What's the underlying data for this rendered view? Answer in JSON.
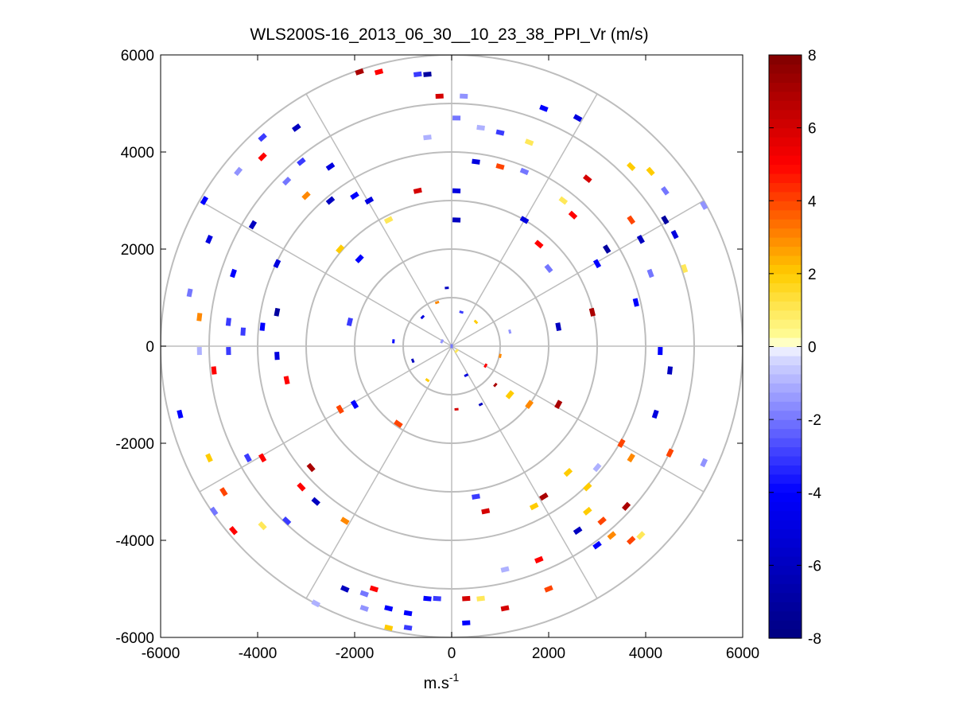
{
  "chart_data": {
    "type": "scatter",
    "subtype": "polar-ppi",
    "title": "WLS200S-16_2013_06_30__10_23_38_PPI_Vr (m/s)",
    "xlabel": "m.s",
    "xlabel_superscript": "-1",
    "ylabel": "",
    "xlim": [
      -6000,
      6000
    ],
    "ylim": [
      -6000,
      6000
    ],
    "xticks": [
      -6000,
      -4000,
      -2000,
      0,
      2000,
      4000,
      6000
    ],
    "yticks": [
      -6000,
      -4000,
      -2000,
      0,
      2000,
      4000,
      6000
    ],
    "xtick_labels": [
      "-6000",
      "-4000",
      "-2000",
      "0",
      "2000",
      "4000",
      "6000"
    ],
    "ytick_labels": [
      "-6000",
      "-4000",
      "-2000",
      "0",
      "2000",
      "4000",
      "6000"
    ],
    "range_rings_m": [
      1000,
      2000,
      3000,
      4000,
      5000,
      6000
    ],
    "spoke_angles_deg": [
      0,
      30,
      60,
      90,
      120,
      150,
      180,
      210,
      240,
      270,
      300,
      330
    ],
    "grid": true,
    "colorbar": {
      "position": "right",
      "min": -8,
      "max": 8,
      "ticks": [
        -8,
        -6,
        -4,
        -2,
        0,
        2,
        4,
        6,
        8
      ],
      "tick_labels": [
        "-8",
        "-6",
        "-4",
        "-2",
        "0",
        "2",
        "4",
        "6",
        "8"
      ],
      "stops": [
        "#000080",
        "#0000ff",
        "#dde0ff",
        "#ffffff",
        "#ffffa0",
        "#ffcc00",
        "#ff0000",
        "#800000"
      ]
    },
    "series": [
      {
        "name": "radial velocity Vr (m/s)",
        "points": [
          {
            "x": -1900,
            "y": 5650,
            "v": 7
          },
          {
            "x": -1500,
            "y": 5650,
            "v": 5
          },
          {
            "x": -700,
            "y": 5600,
            "v": -3
          },
          {
            "x": -500,
            "y": 5600,
            "v": -7
          },
          {
            "x": -250,
            "y": 5150,
            "v": 6
          },
          {
            "x": 250,
            "y": 5150,
            "v": -1.5
          },
          {
            "x": 1900,
            "y": 4900,
            "v": -4
          },
          {
            "x": 2600,
            "y": 4700,
            "v": -5
          },
          {
            "x": -3200,
            "y": 4500,
            "v": -6
          },
          {
            "x": -3900,
            "y": 4300,
            "v": -3
          },
          {
            "x": -3900,
            "y": 3900,
            "v": 5
          },
          {
            "x": -4400,
            "y": 3600,
            "v": -1.5
          },
          {
            "x": -3100,
            "y": 3800,
            "v": -3
          },
          {
            "x": -2500,
            "y": 3700,
            "v": -5
          },
          {
            "x": -3400,
            "y": 3400,
            "v": -2
          },
          {
            "x": -3000,
            "y": 3100,
            "v": 3
          },
          {
            "x": -2500,
            "y": 3000,
            "v": -6
          },
          {
            "x": -2000,
            "y": 3100,
            "v": -4
          },
          {
            "x": -1700,
            "y": 3000,
            "v": -5
          },
          {
            "x": 100,
            "y": 4700,
            "v": -2
          },
          {
            "x": 600,
            "y": 4500,
            "v": -1
          },
          {
            "x": 1000,
            "y": 4400,
            "v": -3
          },
          {
            "x": 1600,
            "y": 4200,
            "v": 1
          },
          {
            "x": -500,
            "y": 4300,
            "v": -1
          },
          {
            "x": 500,
            "y": 3800,
            "v": -5
          },
          {
            "x": 1000,
            "y": 3700,
            "v": 4
          },
          {
            "x": 1500,
            "y": 3600,
            "v": -2
          },
          {
            "x": 2800,
            "y": 3450,
            "v": 6
          },
          {
            "x": 3700,
            "y": 3700,
            "v": 2
          },
          {
            "x": 4100,
            "y": 3600,
            "v": 2
          },
          {
            "x": 4400,
            "y": 3200,
            "v": -2
          },
          {
            "x": 4400,
            "y": 2600,
            "v": -7
          },
          {
            "x": 5200,
            "y": 2900,
            "v": -1.5
          },
          {
            "x": 4600,
            "y": 2300,
            "v": -5
          },
          {
            "x": 4800,
            "y": 1600,
            "v": 1
          },
          {
            "x": 3700,
            "y": 2600,
            "v": 4
          },
          {
            "x": 3900,
            "y": 2200,
            "v": -6
          },
          {
            "x": 3200,
            "y": 2000,
            "v": -7
          },
          {
            "x": 3000,
            "y": 1700,
            "v": -4
          },
          {
            "x": 2300,
            "y": 3000,
            "v": 1
          },
          {
            "x": 2500,
            "y": 2700,
            "v": 5
          },
          {
            "x": 1800,
            "y": 2100,
            "v": 5
          },
          {
            "x": 1500,
            "y": 2600,
            "v": -5
          },
          {
            "x": 2000,
            "y": 1600,
            "v": -2
          },
          {
            "x": -700,
            "y": 3200,
            "v": 6
          },
          {
            "x": 100,
            "y": 3200,
            "v": -5
          },
          {
            "x": 100,
            "y": 2600,
            "v": -6
          },
          {
            "x": -1300,
            "y": 2600,
            "v": 1
          },
          {
            "x": -2300,
            "y": 2000,
            "v": 2
          },
          {
            "x": -1900,
            "y": 1800,
            "v": -4
          },
          {
            "x": -4100,
            "y": 2500,
            "v": -6
          },
          {
            "x": -5000,
            "y": 2200,
            "v": -5
          },
          {
            "x": -5100,
            "y": 3000,
            "v": -4
          },
          {
            "x": -3600,
            "y": 1700,
            "v": -5
          },
          {
            "x": -4500,
            "y": 1500,
            "v": -4
          },
          {
            "x": -5400,
            "y": 1100,
            "v": -2
          },
          {
            "x": -5200,
            "y": 600,
            "v": 3
          },
          {
            "x": -4600,
            "y": 500,
            "v": -3
          },
          {
            "x": -4300,
            "y": 300,
            "v": -3
          },
          {
            "x": -3600,
            "y": 700,
            "v": -7
          },
          {
            "x": -3900,
            "y": 400,
            "v": -4
          },
          {
            "x": -5200,
            "y": -100,
            "v": -1
          },
          {
            "x": -4600,
            "y": -100,
            "v": -3
          },
          {
            "x": -4900,
            "y": -500,
            "v": 5
          },
          {
            "x": -3600,
            "y": -200,
            "v": -5
          },
          {
            "x": -3400,
            "y": -700,
            "v": 5
          },
          {
            "x": -5600,
            "y": -1400,
            "v": -4
          },
          {
            "x": -3900,
            "y": -2300,
            "v": 5
          },
          {
            "x": -4200,
            "y": -2300,
            "v": -3
          },
          {
            "x": -5000,
            "y": -2300,
            "v": 2
          },
          {
            "x": -4700,
            "y": -3000,
            "v": 4
          },
          {
            "x": -4900,
            "y": -3400,
            "v": -2
          },
          {
            "x": -4500,
            "y": -3800,
            "v": 5
          },
          {
            "x": -3900,
            "y": -3700,
            "v": 1
          },
          {
            "x": -2900,
            "y": -2500,
            "v": 7
          },
          {
            "x": -3100,
            "y": -2900,
            "v": 5
          },
          {
            "x": -2800,
            "y": -3200,
            "v": -6
          },
          {
            "x": -2200,
            "y": -3600,
            "v": 3
          },
          {
            "x": -3400,
            "y": -3600,
            "v": -3
          },
          {
            "x": -2200,
            "y": -5000,
            "v": -6
          },
          {
            "x": -1600,
            "y": -5000,
            "v": 5
          },
          {
            "x": -1800,
            "y": -5100,
            "v": -2
          },
          {
            "x": -1800,
            "y": -5400,
            "v": -1.5
          },
          {
            "x": -1300,
            "y": -5400,
            "v": -4
          },
          {
            "x": -900,
            "y": -5500,
            "v": -4
          },
          {
            "x": -500,
            "y": -5200,
            "v": -4
          },
          {
            "x": -300,
            "y": -5200,
            "v": -3
          },
          {
            "x": -2800,
            "y": -5300,
            "v": -1
          },
          {
            "x": -1300,
            "y": -5800,
            "v": 2
          },
          {
            "x": -900,
            "y": -5800,
            "v": -3
          },
          {
            "x": 300,
            "y": -5200,
            "v": 6
          },
          {
            "x": 600,
            "y": -5200,
            "v": 1
          },
          {
            "x": 1100,
            "y": -5400,
            "v": 6
          },
          {
            "x": 300,
            "y": -5700,
            "v": -4
          },
          {
            "x": 2000,
            "y": -5000,
            "v": 4
          },
          {
            "x": 1800,
            "y": -4400,
            "v": 5
          },
          {
            "x": 1100,
            "y": -4600,
            "v": -1
          },
          {
            "x": 700,
            "y": -3400,
            "v": 6
          },
          {
            "x": 500,
            "y": -3100,
            "v": -3
          },
          {
            "x": 1700,
            "y": -3300,
            "v": 2
          },
          {
            "x": 1900,
            "y": -3100,
            "v": 7
          },
          {
            "x": 2800,
            "y": -3400,
            "v": 2
          },
          {
            "x": 2600,
            "y": -3800,
            "v": -6
          },
          {
            "x": 3100,
            "y": -3600,
            "v": 4
          },
          {
            "x": 3600,
            "y": -3300,
            "v": 7
          },
          {
            "x": 3300,
            "y": -3900,
            "v": 3
          },
          {
            "x": 3700,
            "y": -4000,
            "v": 4
          },
          {
            "x": 3900,
            "y": -3900,
            "v": 1
          },
          {
            "x": 3000,
            "y": -4100,
            "v": -4
          },
          {
            "x": 2800,
            "y": -2900,
            "v": 2
          },
          {
            "x": 2400,
            "y": -2600,
            "v": 2
          },
          {
            "x": 3000,
            "y": -2500,
            "v": -1
          },
          {
            "x": 3500,
            "y": -2000,
            "v": 4
          },
          {
            "x": 3700,
            "y": -2300,
            "v": 3
          },
          {
            "x": 5200,
            "y": -2400,
            "v": -1.5
          },
          {
            "x": 4500,
            "y": -2200,
            "v": 4
          },
          {
            "x": 4200,
            "y": -1400,
            "v": -5
          },
          {
            "x": 4300,
            "y": -100,
            "v": -4
          },
          {
            "x": 4500,
            "y": -500,
            "v": -6
          },
          {
            "x": 2200,
            "y": -1200,
            "v": 7
          },
          {
            "x": 1600,
            "y": -1200,
            "v": 3
          },
          {
            "x": 1200,
            "y": -1000,
            "v": 2
          },
          {
            "x": 2900,
            "y": 700,
            "v": 7
          },
          {
            "x": 2200,
            "y": 400,
            "v": -6
          },
          {
            "x": 3800,
            "y": 900,
            "v": -4
          },
          {
            "x": 4100,
            "y": 1500,
            "v": -2
          },
          {
            "x": -2100,
            "y": 500,
            "v": -3
          },
          {
            "x": -2300,
            "y": -1300,
            "v": 4
          },
          {
            "x": -2000,
            "y": -1200,
            "v": -4
          },
          {
            "x": -1100,
            "y": -1600,
            "v": 4
          },
          {
            "x": 600,
            "y": -1200,
            "v": -6
          },
          {
            "x": 900,
            "y": -800,
            "v": 7
          },
          {
            "x": -600,
            "y": 600,
            "v": -5
          },
          {
            "x": -300,
            "y": 900,
            "v": 3
          },
          {
            "x": 200,
            "y": 700,
            "v": -3
          },
          {
            "x": 500,
            "y": 500,
            "v": 2
          },
          {
            "x": -800,
            "y": -300,
            "v": -6
          },
          {
            "x": 700,
            "y": -400,
            "v": 5
          },
          {
            "x": -500,
            "y": -700,
            "v": 2
          },
          {
            "x": 300,
            "y": -600,
            "v": -5
          },
          {
            "x": 1200,
            "y": 300,
            "v": -1.5
          },
          {
            "x": -1200,
            "y": 100,
            "v": -4
          },
          {
            "x": 1000,
            "y": -200,
            "v": 3
          },
          {
            "x": -100,
            "y": 1200,
            "v": -6
          },
          {
            "x": 100,
            "y": -1300,
            "v": 6
          },
          {
            "x": -200,
            "y": 100,
            "v": -1.5
          },
          {
            "x": 0,
            "y": 0,
            "v": -2
          },
          {
            "x": 100,
            "y": -100,
            "v": 1
          }
        ]
      }
    ]
  }
}
